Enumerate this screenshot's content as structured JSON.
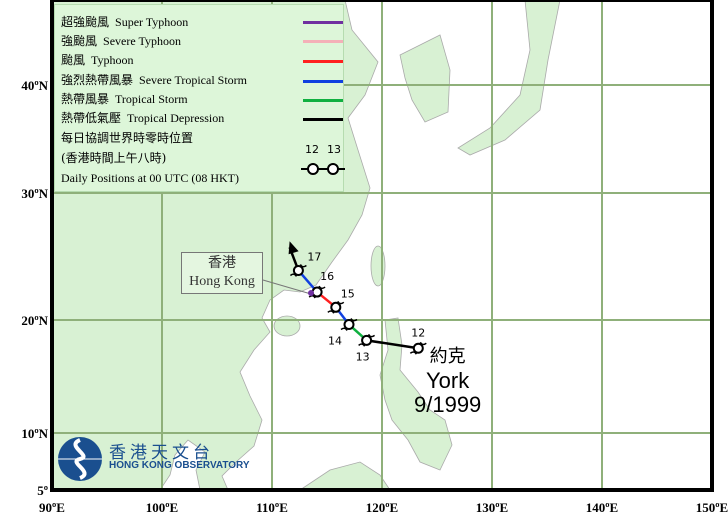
{
  "legend": {
    "items": [
      {
        "zh": "超強颱風",
        "en": "Super Typhoon",
        "color": "#7030a0"
      },
      {
        "zh": "強颱風",
        "en": "Severe Typhoon",
        "color": "#f4b0b8"
      },
      {
        "zh": "颱風",
        "en": "Typhoon",
        "color": "#ff2020"
      },
      {
        "zh": "強烈熱帶風暴",
        "en": "Severe Tropical Storm",
        "color": "#1040e0"
      },
      {
        "zh": "熱帶風暴",
        "en": "Tropical Storm",
        "color": "#10b040"
      },
      {
        "zh": "熱帶低氣壓",
        "en": "Tropical Depression",
        "color": "#000000"
      }
    ],
    "daily_zh_1": "每日協調世界時零時位置",
    "daily_zh_2": "(香港時間上午八時)",
    "daily_en": "Daily Positions at 00 UTC (08 HKT)",
    "sample_days": [
      "12",
      "13"
    ]
  },
  "axes": {
    "lon_labels": [
      "90ºE",
      "100ºE",
      "110ºE",
      "120ºE",
      "130ºE",
      "140ºE",
      "150ºE"
    ],
    "lat_labels": [
      "5º",
      "10ºN",
      "20ºN",
      "30ºN",
      "40ºN"
    ]
  },
  "hong_kong": {
    "zh": "香港",
    "en": "Hong Kong"
  },
  "storm": {
    "zh": "約克",
    "en": "York",
    "date": "9/1999"
  },
  "track": {
    "points": [
      {
        "day": "12",
        "lon": 123.3,
        "lat": 17.5
      },
      {
        "day": "13",
        "lon": 118.6,
        "lat": 18.2
      },
      {
        "day": "14",
        "lon": 117.0,
        "lat": 19.6
      },
      {
        "day": "15",
        "lon": 115.8,
        "lat": 21.0
      },
      {
        "day": "16",
        "lon": 114.1,
        "lat": 22.2
      },
      {
        "day": "17",
        "lon": 112.4,
        "lat": 23.9
      }
    ],
    "segment_colors": [
      "#000000",
      "#10b040",
      "#1040e0",
      "#ff2020",
      "#1040e0"
    ],
    "heading_arrow": {
      "lon": 111.6,
      "lat": 26.2,
      "color": "#000000"
    }
  },
  "logo": {
    "zh": "香港天文台",
    "en": "HONG KONG OBSERVATORY",
    "color": "#1a4f8f"
  },
  "colors": {
    "land": "#d8f1d3",
    "sea": "#ffffff",
    "grid": "#8fb07a"
  }
}
